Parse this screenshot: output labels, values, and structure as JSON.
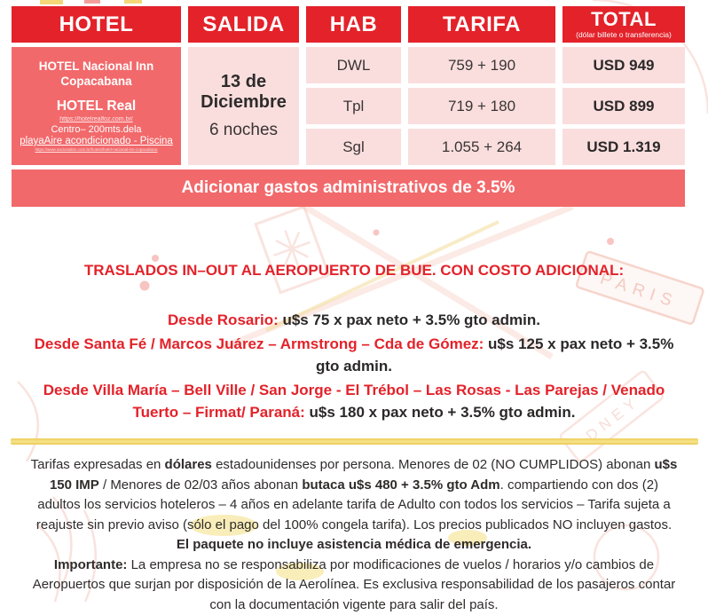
{
  "table": {
    "headers": {
      "hotel": "HOTEL",
      "salida": "SALIDA",
      "hab": "HAB",
      "tarifa": "TARIFA",
      "total": "TOTAL",
      "total_sub": "(dólar billete o transferencia)"
    },
    "hotel_cell": {
      "name": "HOTEL Nacional Inn Copacabana",
      "name2": "HOTEL Real",
      "url1": "https://hotelrealfoz.com.br/",
      "location": "Centro– 200mts.dela",
      "amenities": "playaAire acondicionado - Piscina",
      "url2": "https://www.nacionalinn.com.br/hoteis/hotel-nacional-inn-copacabana"
    },
    "salida_cell": {
      "date": "13 de Diciembre",
      "nights": "6 noches"
    },
    "rows": [
      {
        "hab": "DWL",
        "tarifa": "759 + 190",
        "total": "USD 949"
      },
      {
        "hab": "Tpl",
        "tarifa": "719 + 180",
        "total": "USD 899"
      },
      {
        "hab": "Sgl",
        "tarifa": "1.055 + 264",
        "total": "USD 1.319"
      }
    ]
  },
  "banner": "Adicionar gastos administrativos de 3.5%",
  "traslados": {
    "heading": "TRASLADOS IN–OUT AL AEROPUERTO DE BUE. CON COSTO ADICIONAL:",
    "lines": [
      [
        {
          "t": "Desde Rosario:",
          "c": "#e3222a"
        },
        {
          "t": " u$s 75 x pax neto + 3.5% gto admin."
        }
      ],
      [
        {
          "t": "Desde Santa Fé / Marcos Juárez – Armstrong – Cda de Gómez:",
          "c": "#e3222a"
        },
        {
          "t": " u$s 125 x pax neto + 3.5% gto admin."
        }
      ],
      [
        {
          "t": "Desde Villa María – Bell Ville / San Jorge - El Trébol – Las Rosas - Las Parejas / Venado Tuerto – Firmat/ Paraná:",
          "c": "#e3222a"
        },
        {
          "t": " u$s 180 x pax neto + 3.5% gto admin."
        }
      ]
    ]
  },
  "terms": {
    "p1": [
      {
        "t": "Tarifas expresadas en "
      },
      {
        "t": "dólares",
        "b": true
      },
      {
        "t": " estadounidenses por persona. Menores de 02 (NO CUMPLIDOS) abonan "
      },
      {
        "t": "u$s 150 IMP",
        "b": true
      },
      {
        "t": " / Menores de 02/03 años abonan "
      },
      {
        "t": "butaca u$s 480 + 3.5% gto Adm",
        "b": true
      },
      {
        "t": ". compartiendo con dos (2) adultos los servicios hoteleros – 4 años en adelante tarifa de Adulto con todos los servicios – Tarifa sujeta a reajuste sin previo aviso (sólo el pago del 100% congela tarifa). Los precios publicados NO incluyen gastos. "
      },
      {
        "t": "El paquete no incluye asistencia médica de emergencia.",
        "b": true
      }
    ],
    "p2": [
      {
        "t": "Importante:",
        "b": true
      },
      {
        "t": " La empresa no se responsabiliza por modificaciones de vuelos / horarios y/o cambios de Aeropuertos que surjan por disposición de la Aerolínea. Es exclusiva responsabilidad de los pasajeros contar con la documentación vigente para salir del país."
      }
    ]
  },
  "colors": {
    "header_red": "#e3222a",
    "salmon": "#f2696b",
    "light_pink": "#fadede",
    "accent_yellow": "#eecd58",
    "text_dark": "#2b2828",
    "white": "#ffffff"
  }
}
